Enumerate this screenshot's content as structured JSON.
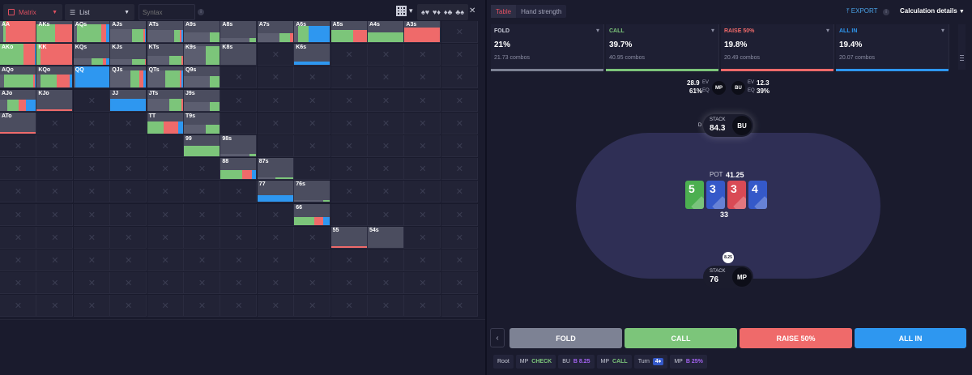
{
  "toolbar": {
    "mode_label": "Matrix",
    "view_label": "List",
    "syntax_placeholder": "Syntax",
    "suits": [
      "♠♥",
      "♥♦",
      "♦♣",
      "♣♠"
    ]
  },
  "matrix": {
    "ranks": [
      "A",
      "K",
      "Q",
      "J",
      "T",
      "9",
      "8",
      "7",
      "6",
      "5",
      "4",
      "3",
      "2"
    ],
    "cells": [
      {
        "r": 0,
        "c": 0,
        "label": "AA",
        "h": 1.0,
        "mix": [
          0.08,
          0.08,
          0.84,
          0
        ]
      },
      {
        "r": 0,
        "c": 1,
        "label": "AKs",
        "h": 0.8,
        "mix": [
          0,
          0.5,
          0.5,
          0
        ]
      },
      {
        "r": 0,
        "c": 2,
        "label": "AQs",
        "h": 0.8,
        "mix": [
          0.1,
          0.65,
          0.15,
          0.1
        ]
      },
      {
        "r": 0,
        "c": 3,
        "label": "AJs",
        "h": 0.6,
        "mix": [
          0.6,
          0.3,
          0.05,
          0.05
        ]
      },
      {
        "r": 0,
        "c": 4,
        "label": "ATs",
        "h": 0.55,
        "mix": [
          0.75,
          0.15,
          0.05,
          0.05
        ]
      },
      {
        "r": 0,
        "c": 5,
        "label": "A9s",
        "h": 0.45,
        "mix": [
          0.7,
          0.3,
          0,
          0
        ]
      },
      {
        "r": 0,
        "c": 6,
        "label": "A8s",
        "h": 0.2,
        "mix": [
          0.8,
          0.2,
          0,
          0
        ]
      },
      {
        "r": 0,
        "c": 7,
        "label": "A7s",
        "h": 0.4,
        "mix": [
          0.6,
          0.3,
          0.1,
          0
        ]
      },
      {
        "r": 0,
        "c": 8,
        "label": "A6s",
        "h": 0.75,
        "mix": [
          0.1,
          0.3,
          0,
          0.6
        ]
      },
      {
        "r": 0,
        "c": 9,
        "label": "A5s",
        "h": 0.55,
        "mix": [
          0,
          0.6,
          0.4,
          0
        ]
      },
      {
        "r": 0,
        "c": 10,
        "label": "A4s",
        "h": 0.45,
        "mix": [
          0,
          1,
          0,
          0
        ]
      },
      {
        "r": 0,
        "c": 11,
        "label": "A3s",
        "h": 0.65,
        "mix": [
          0,
          0,
          1,
          0
        ]
      },
      {
        "r": 1,
        "c": 0,
        "label": "AKo",
        "h": 1.0,
        "mix": [
          0,
          0.65,
          0.3,
          0.05
        ]
      },
      {
        "r": 1,
        "c": 1,
        "label": "KK",
        "h": 1.0,
        "mix": [
          0,
          0.1,
          0.9,
          0
        ]
      },
      {
        "r": 1,
        "c": 2,
        "label": "KQs",
        "h": 0.3,
        "mix": [
          0.5,
          0.3,
          0.1,
          0.1
        ]
      },
      {
        "r": 1,
        "c": 3,
        "label": "KJs",
        "h": 0.25,
        "mix": [
          0.6,
          0.35,
          0.05,
          0
        ]
      },
      {
        "r": 1,
        "c": 4,
        "label": "KTs",
        "h": 0.4,
        "mix": [
          0.6,
          0.35,
          0.05,
          0
        ]
      },
      {
        "r": 1,
        "c": 5,
        "label": "K9s",
        "h": 0.85,
        "mix": [
          0.6,
          0.4,
          0,
          0
        ]
      },
      {
        "r": 1,
        "c": 6,
        "label": "K8s",
        "h": 0.0,
        "mix": [
          1,
          0,
          0,
          0
        ]
      },
      {
        "r": 1,
        "c": 8,
        "label": "K6s",
        "h": 0.15,
        "mix": [
          0,
          0,
          0,
          1
        ]
      },
      {
        "r": 2,
        "c": 0,
        "label": "AQo",
        "h": 0.6,
        "mix": [
          0.1,
          0.8,
          0.05,
          0.05
        ]
      },
      {
        "r": 2,
        "c": 1,
        "label": "KQo",
        "h": 0.6,
        "mix": [
          0.1,
          0.45,
          0.35,
          0.1
        ]
      },
      {
        "r": 2,
        "c": 2,
        "label": "QQ",
        "h": 1.0,
        "mix": [
          0.05,
          0,
          0,
          0.95
        ]
      },
      {
        "r": 2,
        "c": 3,
        "label": "QJs",
        "h": 0.8,
        "mix": [
          0.55,
          0.25,
          0.1,
          0.1
        ]
      },
      {
        "r": 2,
        "c": 4,
        "label": "QTs",
        "h": 0.8,
        "mix": [
          0.5,
          0.4,
          0.05,
          0.05
        ]
      },
      {
        "r": 2,
        "c": 5,
        "label": "Q9s",
        "h": 0.55,
        "mix": [
          0.7,
          0.3,
          0,
          0
        ]
      },
      {
        "r": 3,
        "c": 0,
        "label": "AJo",
        "h": 0.5,
        "mix": [
          0.2,
          0.3,
          0.2,
          0.3
        ]
      },
      {
        "r": 3,
        "c": 1,
        "label": "KJo",
        "h": 0.05,
        "mix": [
          0,
          0,
          1,
          0
        ]
      },
      {
        "r": 3,
        "c": 3,
        "label": "JJ",
        "h": 0.55,
        "mix": [
          0,
          0,
          0,
          1
        ]
      },
      {
        "r": 3,
        "c": 4,
        "label": "JTs",
        "h": 0.55,
        "mix": [
          0.6,
          0.35,
          0.05,
          0
        ]
      },
      {
        "r": 3,
        "c": 5,
        "label": "J9s",
        "h": 0.4,
        "mix": [
          0.7,
          0.3,
          0,
          0
        ]
      },
      {
        "r": 4,
        "c": 0,
        "label": "ATo",
        "h": 0.08,
        "mix": [
          0,
          0,
          1,
          0
        ]
      },
      {
        "r": 4,
        "c": 4,
        "label": "TT",
        "h": 0.55,
        "mix": [
          0,
          0.45,
          0.4,
          0.15
        ]
      },
      {
        "r": 4,
        "c": 5,
        "label": "T9s",
        "h": 0.4,
        "mix": [
          0.6,
          0.4,
          0,
          0
        ]
      },
      {
        "r": 5,
        "c": 5,
        "label": "99",
        "h": 0.5,
        "mix": [
          0,
          1,
          0,
          0
        ]
      },
      {
        "r": 5,
        "c": 6,
        "label": "98s",
        "h": 0.1,
        "mix": [
          0.8,
          0.2,
          0,
          0
        ]
      },
      {
        "r": 6,
        "c": 6,
        "label": "88",
        "h": 0.4,
        "mix": [
          0,
          0.6,
          0.25,
          0.15
        ]
      },
      {
        "r": 6,
        "c": 7,
        "label": "87s",
        "h": 0.1,
        "mix": [
          0.5,
          0.5,
          0,
          0
        ]
      },
      {
        "r": 7,
        "c": 7,
        "label": "77",
        "h": 0.3,
        "mix": [
          0,
          0,
          0,
          1
        ]
      },
      {
        "r": 7,
        "c": 8,
        "label": "76s",
        "h": 0.1,
        "mix": [
          0.8,
          0.2,
          0,
          0
        ]
      },
      {
        "r": 8,
        "c": 8,
        "label": "66",
        "h": 0.35,
        "mix": [
          0,
          0.55,
          0.25,
          0.2
        ]
      },
      {
        "r": 9,
        "c": 9,
        "label": "55",
        "h": 0.05,
        "mix": [
          0,
          0,
          1,
          0
        ]
      },
      {
        "r": 9,
        "c": 10,
        "label": "54s",
        "h": 0.0,
        "mix": [
          1,
          0,
          0,
          0
        ]
      }
    ]
  },
  "right": {
    "tabs": [
      "Table",
      "Hand strength"
    ],
    "export_label": "EXPORT",
    "calc_label": "Calculation details",
    "stats": [
      {
        "name": "FOLD",
        "pct": "21%",
        "combos": "21.73 combos",
        "color": "#7d8294",
        "namecolor": "#c9cbd8"
      },
      {
        "name": "CALL",
        "pct": "39.7%",
        "combos": "40.95 combos",
        "color": "#7cc57a",
        "namecolor": "#7cc57a"
      },
      {
        "name": "RAISE 50%",
        "pct": "19.8%",
        "combos": "20.49 combos",
        "color": "#ef6a6a",
        "namecolor": "#ef6a6a"
      },
      {
        "name": "ALL IN",
        "pct": "19.4%",
        "combos": "20.07 combos",
        "color": "#2e97f0",
        "namecolor": "#2e97f0"
      }
    ],
    "ev": {
      "mp_ev": "28.9",
      "mp_eq": "61%",
      "bu_ev": "12.3",
      "bu_eq": "39%",
      "ev_label": "EV",
      "eq_label": "EQ",
      "mp": "MP",
      "bu": "BU"
    },
    "seats": {
      "bu": {
        "stack_label": "STACK",
        "stack": "84.3",
        "pos": "BU",
        "dealer": "D"
      },
      "mp": {
        "stack_label": "STACK",
        "stack": "76",
        "pos": "MP",
        "bet": "8.25"
      }
    },
    "pot_label": "POT",
    "pot": "41.25",
    "board": [
      {
        "rank": "5",
        "color": "#4caf50"
      },
      {
        "rank": "3",
        "color": "#3559c9"
      },
      {
        "rank": "3",
        "color": "#d94a55"
      },
      {
        "rank": "4",
        "color": "#3559c9"
      }
    ],
    "board_value": "33",
    "actions": [
      "FOLD",
      "CALL",
      "RAISE 50%",
      "ALL IN"
    ],
    "crumbs": {
      "root": "Root",
      "c1_pos": "MP",
      "c1_act": "CHECK",
      "c2_pos": "BU",
      "c2_act": "B 8.25",
      "c3_pos": "MP",
      "c3_act": "CALL",
      "c4_pos": "Turn",
      "c4_card": "4♦",
      "c5_pos": "MP",
      "c5_act": "B 25%"
    }
  }
}
